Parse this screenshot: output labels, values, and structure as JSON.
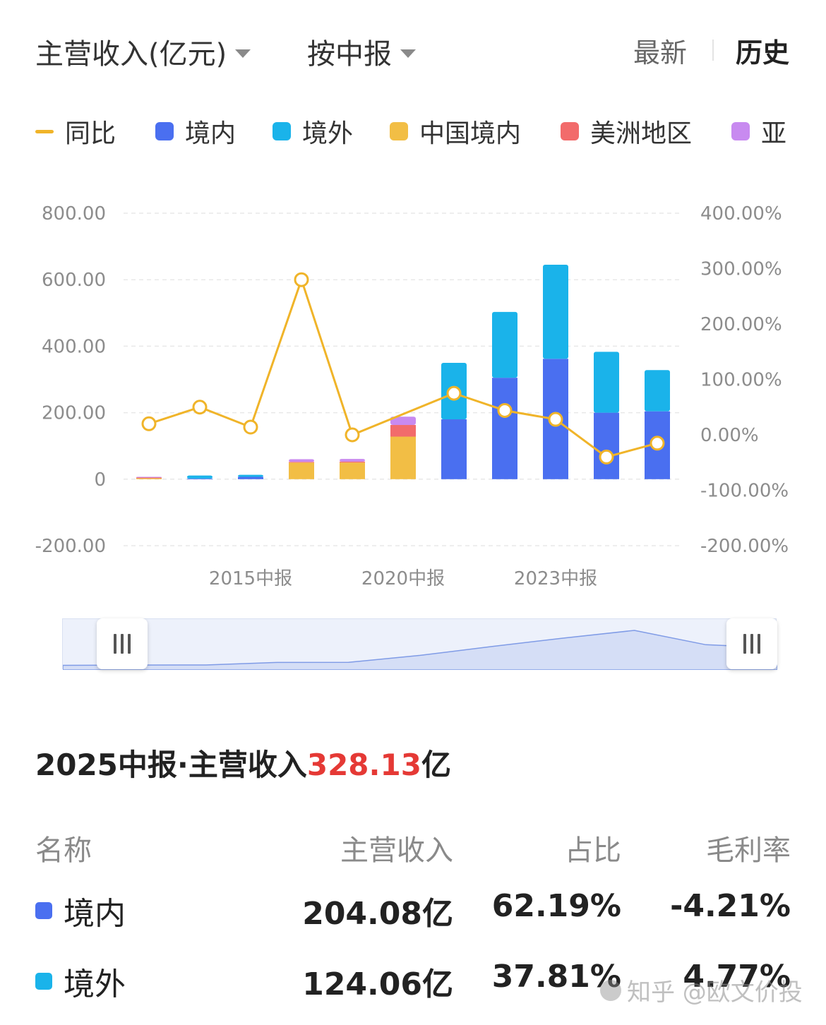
{
  "header": {
    "metric_label": "主营收入(亿元)",
    "period_label": "按中报",
    "mode_latest": "最新",
    "mode_history": "历史"
  },
  "legend": [
    {
      "label": "同比",
      "color": "#f0b429",
      "shape": "line"
    },
    {
      "label": "境内",
      "color": "#4a6ff0",
      "shape": "square"
    },
    {
      "label": "境外",
      "color": "#1ab3ea",
      "shape": "square"
    },
    {
      "label": "中国境内",
      "color": "#f2be45",
      "shape": "square"
    },
    {
      "label": "美洲地区",
      "color": "#f26b6b",
      "shape": "square"
    },
    {
      "label": "亚",
      "color": "#c88af0",
      "shape": "square"
    }
  ],
  "chart_data": {
    "type": "bar",
    "stacked": true,
    "categories": [
      "",
      "",
      "2015中报",
      "",
      "",
      "2020中报",
      "",
      "",
      "2023中报",
      "",
      ""
    ],
    "x_tick_labels": [
      "2015中报",
      "2020中报",
      "2023中报"
    ],
    "y_left": {
      "min": -200,
      "max": 800,
      "ticks": [
        "800.00",
        "600.00",
        "400.00",
        "200.00",
        "0",
        "-200.00"
      ]
    },
    "y_right": {
      "min": -200,
      "max": 400,
      "ticks": [
        "400.00%",
        "300.00%",
        "200.00%",
        "100.00%",
        "0.00%",
        "-100.00%",
        "-200.00%"
      ]
    },
    "grid": true,
    "series": [
      {
        "name": "境内",
        "color": "#4a6ff0",
        "values": [
          0,
          2,
          7,
          0,
          0,
          0,
          180,
          305,
          362,
          200,
          204.08
        ]
      },
      {
        "name": "境外",
        "color": "#1ab3ea",
        "values": [
          0,
          9,
          6,
          0,
          0,
          0,
          170,
          198,
          283,
          183,
          124.06
        ]
      },
      {
        "name": "中国境内",
        "color": "#f2be45",
        "values": [
          3,
          0,
          0,
          50,
          50,
          128,
          0,
          0,
          0,
          0,
          0
        ]
      },
      {
        "name": "美洲地区",
        "color": "#f26b6b",
        "values": [
          2,
          0,
          0,
          2,
          3,
          35,
          0,
          0,
          0,
          0,
          0
        ]
      },
      {
        "name": "亚",
        "color": "#c88af0",
        "values": [
          2,
          0,
          0,
          8,
          8,
          25,
          0,
          0,
          0,
          0,
          0
        ]
      },
      {
        "name": "同比",
        "color": "#f0b429",
        "axis": "right",
        "line": true,
        "values": [
          20,
          50,
          14,
          280,
          0,
          null,
          75,
          44,
          28,
          -40,
          -15
        ]
      }
    ],
    "ranges": {
      "range_left": 0.07,
      "range_right": 0.97
    }
  },
  "summary": {
    "prefix": "2025中报·主营收入",
    "value": "328.13",
    "suffix": "亿"
  },
  "table": {
    "headers": {
      "name": "名称",
      "revenue": "主营收入",
      "share": "占比",
      "margin": "毛利率"
    },
    "rows": [
      {
        "name": "境内",
        "color": "#4a6ff0",
        "revenue": "204.08亿",
        "share": "62.19%",
        "margin": "-4.21%"
      },
      {
        "name": "境外",
        "color": "#1ab3ea",
        "revenue": "124.06亿",
        "share": "37.81%",
        "margin": "4.77%"
      }
    ]
  },
  "watermark": "知乎 @欧文价投"
}
